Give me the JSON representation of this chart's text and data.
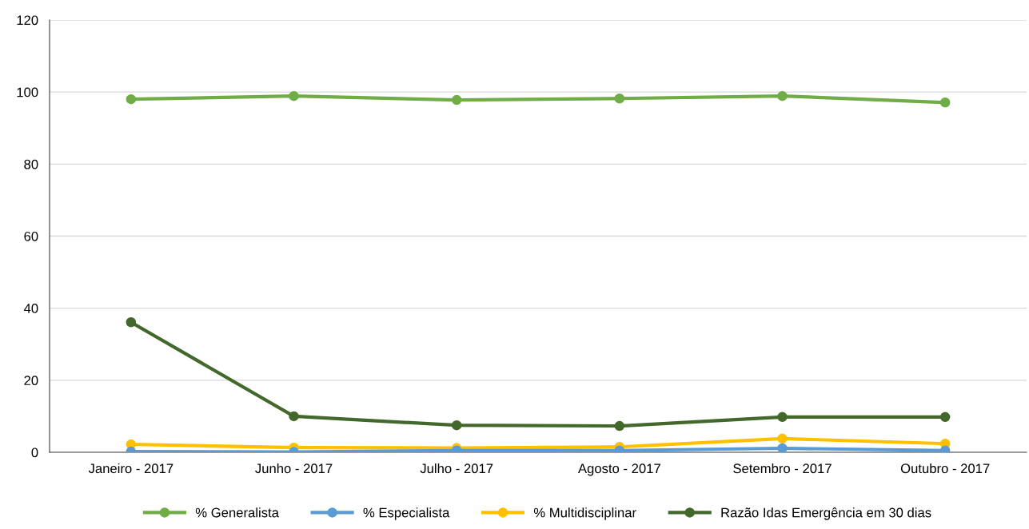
{
  "chart_data": {
    "type": "line",
    "categories": [
      "Janeiro - 2017",
      "Junho - 2017",
      "Julho - 2017",
      "Agosto - 2017",
      "Setembro - 2017",
      "Outubro - 2017"
    ],
    "series": [
      {
        "name": "% Generalista",
        "color": "#70ad47",
        "values": [
          98.0,
          98.9,
          97.8,
          98.2,
          98.9,
          97.1
        ]
      },
      {
        "name": "% Especialista",
        "color": "#5b9bd5",
        "values": [
          0.2,
          0.1,
          0.5,
          0.5,
          1.1,
          0.5
        ]
      },
      {
        "name": "% Multidisciplinar",
        "color": "#ffc000",
        "values": [
          2.2,
          1.3,
          1.2,
          1.5,
          3.8,
          2.4
        ]
      },
      {
        "name": "Razão Idas Emergência em 30 dias",
        "color": "#43682b",
        "values": [
          36.1,
          10.0,
          7.5,
          7.3,
          9.8,
          9.8
        ]
      }
    ],
    "ylim": [
      0,
      120
    ],
    "yticks": [
      0,
      20,
      40,
      60,
      80,
      100,
      120
    ],
    "grid": "y",
    "legend": "bottom",
    "marker": "circle",
    "line_style": "solid"
  }
}
